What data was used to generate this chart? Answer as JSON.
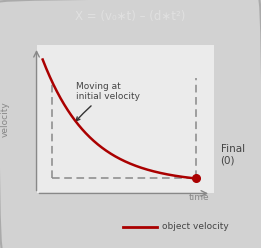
{
  "title": "X = (v₀∗t) – (d∗t²)",
  "title_bg": "#686868",
  "title_color": "#e0e0e0",
  "bg_color": "#d2d2d2",
  "plot_bg": "#ebebeb",
  "curve_color": "#aa0000",
  "dashed_color": "#888888",
  "annotation_text": "Moving at\ninitial velocity",
  "xlabel": "time",
  "ylabel": "velocity",
  "legend_label": "object velocity",
  "final_label": "Final\n(0)",
  "final_dot_color": "#aa0000",
  "arrow_color": "#333333",
  "border_color": "#aaaaaa",
  "axis_color": "#888888",
  "text_color": "#444444"
}
